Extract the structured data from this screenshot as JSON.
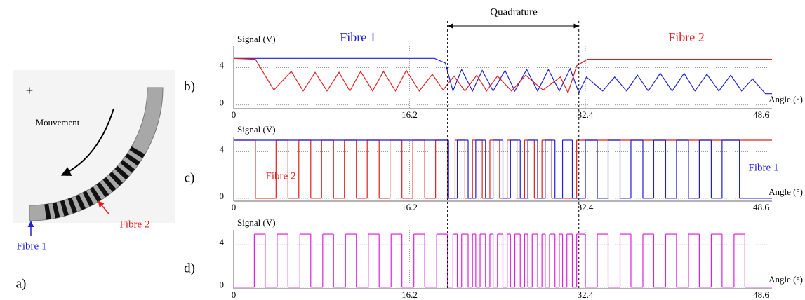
{
  "panel_a": {
    "label": "a)",
    "center_mark": "+",
    "movement": "Mouvement",
    "fibre_1": "Fibre 1",
    "fibre_2": "Fibre 2"
  },
  "quadrature": {
    "label": "Quadrature",
    "range": [
      19.7,
      31.8
    ]
  },
  "chart_data": [
    {
      "type": "line",
      "panel_label": "b)",
      "ylabel": "Signal (V)",
      "xlabel": "Angle (°)",
      "xlim": [
        0,
        49.6
      ],
      "ylim": [
        -0.4,
        6.3
      ],
      "xticks": [
        0,
        16.2,
        32.4,
        48.6
      ],
      "yticks": [
        0,
        4
      ],
      "grid": true,
      "drawstyle": "line",
      "series": [
        {
          "name": "Fibre 1",
          "color": "#1f1fd6",
          "x": [
            0,
            18.5,
            19.5,
            20.2,
            21.0,
            22.0,
            22.9,
            23.9,
            25.0,
            25.9,
            27.0,
            28.0,
            29.0,
            30.0,
            31.0,
            31.8,
            32.5,
            34.0,
            35.1,
            36.2,
            37.2,
            38.2,
            39.3,
            40.4,
            41.5,
            42.5,
            43.6,
            44.7,
            45.8,
            46.8,
            47.8,
            49.0,
            49.6
          ],
          "values": [
            5,
            5,
            4.5,
            1.5,
            3.8,
            1.5,
            3.7,
            1.5,
            3.7,
            1.5,
            3.8,
            1.5,
            3.8,
            1.5,
            3.9,
            1.3,
            3.0,
            1.5,
            3.0,
            1.5,
            3.2,
            1.5,
            3.4,
            1.5,
            3.4,
            1.5,
            3.3,
            1.5,
            3.2,
            1.5,
            2.8,
            1.2,
            1.2
          ]
        },
        {
          "name": "Fibre 2",
          "color": "#e02020",
          "x": [
            0,
            2,
            3.7,
            5.3,
            6.4,
            7.5,
            8.6,
            9.7,
            10.7,
            11.7,
            12.8,
            13.8,
            14.9,
            15.9,
            17.1,
            18.3,
            19.3,
            20.3,
            21.3,
            22.4,
            23.3,
            24.3,
            25.6,
            26.9,
            28.5,
            30.1,
            30.8,
            31.6,
            32.6,
            49.6
          ],
          "values": [
            5,
            4.9,
            1.6,
            3.6,
            1.5,
            3.5,
            1.5,
            3.5,
            1.5,
            3.6,
            1.5,
            3.6,
            1.5,
            3.7,
            1.5,
            3.3,
            1.6,
            3.1,
            1.5,
            3.2,
            1.5,
            3.1,
            1.5,
            3.2,
            1.6,
            3.0,
            1.3,
            4.2,
            4.9,
            4.9
          ]
        }
      ]
    },
    {
      "type": "line",
      "panel_label": "c)",
      "ylabel": "Signal (V)",
      "xlabel": "Angle (°)",
      "xlim": [
        0,
        49.6
      ],
      "ylim": [
        -0.25,
        5.3
      ],
      "xticks": [
        0,
        16.2,
        32.4,
        48.6
      ],
      "yticks": [
        0,
        4
      ],
      "grid": true,
      "drawstyle": "steps-post",
      "series": [
        {
          "name": "Fibre 2",
          "color": "#e02020",
          "x": [
            0,
            2.0,
            3.9,
            5.0,
            6.0,
            7.1,
            8.1,
            9.2,
            10.2,
            11.3,
            12.3,
            13.4,
            14.4,
            15.5,
            16.5,
            17.6,
            18.6,
            19.7,
            20.4,
            21.3,
            22.0,
            22.9,
            23.6,
            24.5,
            25.2,
            26.1,
            26.8,
            27.7,
            28.4,
            29.3,
            31.6,
            49.6
          ],
          "values": [
            5,
            0,
            5,
            0,
            5,
            0,
            5,
            0,
            5,
            0,
            5,
            0,
            5,
            0,
            5,
            0,
            5,
            0,
            5,
            0,
            5,
            0,
            5,
            0,
            5,
            0,
            5,
            0,
            5,
            0,
            5,
            5
          ]
        },
        {
          "name": "Fibre 1",
          "color": "#1f1fd6",
          "x": [
            0,
            19.8,
            20.6,
            21.6,
            22.3,
            23.2,
            23.9,
            24.8,
            25.5,
            26.4,
            27.1,
            28.0,
            28.7,
            29.6,
            30.3,
            31.2,
            32.4,
            33.5,
            34.5,
            35.6,
            36.6,
            37.7,
            38.7,
            39.8,
            40.8,
            41.9,
            42.9,
            44.0,
            45.0,
            46.6,
            49.6
          ],
          "values": [
            5,
            0,
            5,
            0,
            5,
            0,
            5,
            0,
            5,
            0,
            5,
            0,
            5,
            0,
            5,
            0,
            5,
            0,
            5,
            0,
            5,
            0,
            5,
            0,
            5,
            0,
            5,
            0,
            5,
            0,
            0
          ]
        }
      ]
    },
    {
      "type": "line",
      "panel_label": "d)",
      "ylabel": "Signal (V)",
      "xlabel": "Angle (°)",
      "xlim": [
        0,
        49.6
      ],
      "ylim": [
        -0.15,
        5.4
      ],
      "xticks": [
        0,
        16.2,
        32.4,
        48.6
      ],
      "yticks": [
        0,
        4
      ],
      "grid": true,
      "drawstyle": "steps-post",
      "series": [
        {
          "color": "#e020e0",
          "x": [
            0,
            1.9,
            2.9,
            4.0,
            5.0,
            6.1,
            7.1,
            8.2,
            9.2,
            10.3,
            11.3,
            12.4,
            13.4,
            14.5,
            15.5,
            16.6,
            17.6,
            18.7,
            19.7,
            20.2,
            20.6,
            21.0,
            21.6,
            22.0,
            22.3,
            22.7,
            23.2,
            23.6,
            23.9,
            24.3,
            24.8,
            25.2,
            25.5,
            25.9,
            26.4,
            26.8,
            27.1,
            27.5,
            28.0,
            28.4,
            28.7,
            29.1,
            29.6,
            30.0,
            30.3,
            30.7,
            31.2,
            31.6,
            32.4,
            33.5,
            34.5,
            35.6,
            36.6,
            37.7,
            38.7,
            39.8,
            40.8,
            41.9,
            42.9,
            44.0,
            45.0,
            46.1,
            47.1,
            49.6
          ],
          "values": [
            0,
            5,
            0,
            5,
            0,
            5,
            0,
            5,
            0,
            5,
            0,
            5,
            0,
            5,
            0,
            5,
            0,
            5,
            0,
            5,
            0,
            5,
            0,
            5,
            0,
            5,
            0,
            5,
            0,
            5,
            0,
            5,
            0,
            5,
            0,
            5,
            0,
            5,
            0,
            5,
            0,
            5,
            0,
            5,
            0,
            5,
            0,
            5,
            0,
            5,
            0,
            5,
            0,
            5,
            0,
            5,
            0,
            5,
            0,
            5,
            0,
            5,
            0,
            0
          ]
        }
      ]
    }
  ]
}
